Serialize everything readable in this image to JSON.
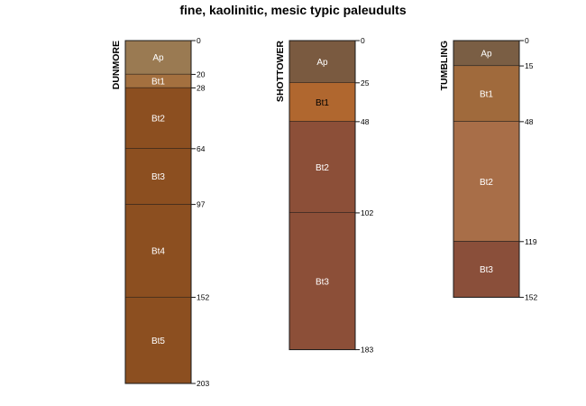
{
  "chart_data": {
    "type": "soil-profile",
    "title": "fine, kaolinitic, mesic typic paleudults",
    "depth_unit": "cm",
    "profiles": [
      {
        "name": "DUNMORE",
        "horizons": [
          {
            "name": "Ap",
            "top": 0,
            "bottom": 20,
            "color": "#9A7A52",
            "label_color": "#ffffff"
          },
          {
            "name": "Bt1",
            "top": 20,
            "bottom": 28,
            "color": "#A4703F",
            "label_color": "#ffffff"
          },
          {
            "name": "Bt2",
            "top": 28,
            "bottom": 64,
            "color": "#8C4F20",
            "label_color": "#ffffff"
          },
          {
            "name": "Bt3",
            "top": 64,
            "bottom": 97,
            "color": "#8C4F20",
            "label_color": "#ffffff"
          },
          {
            "name": "Bt4",
            "top": 97,
            "bottom": 152,
            "color": "#8C4F20",
            "label_color": "#ffffff"
          },
          {
            "name": "Bt5",
            "top": 152,
            "bottom": 203,
            "color": "#8C4F20",
            "label_color": "#ffffff"
          }
        ]
      },
      {
        "name": "SHOTTOWER",
        "horizons": [
          {
            "name": "Ap",
            "top": 0,
            "bottom": 25,
            "color": "#7A5A40",
            "label_color": "#ffffff"
          },
          {
            "name": "Bt1",
            "top": 25,
            "bottom": 48,
            "color": "#B0672F",
            "label_color": "#000000"
          },
          {
            "name": "Bt2",
            "top": 48,
            "bottom": 102,
            "color": "#8C4F38",
            "label_color": "#ffffff"
          },
          {
            "name": "Bt3",
            "top": 102,
            "bottom": 183,
            "color": "#8C4F38",
            "label_color": "#ffffff"
          }
        ]
      },
      {
        "name": "TUMBLING",
        "horizons": [
          {
            "name": "Ap",
            "top": 0,
            "bottom": 15,
            "color": "#7A5E44",
            "label_color": "#ffffff"
          },
          {
            "name": "Bt1",
            "top": 15,
            "bottom": 48,
            "color": "#A06A3C",
            "label_color": "#ffffff"
          },
          {
            "name": "Bt2",
            "top": 48,
            "bottom": 119,
            "color": "#A86E48",
            "label_color": "#ffffff"
          },
          {
            "name": "Bt3",
            "top": 119,
            "bottom": 152,
            "color": "#8A4F3A",
            "label_color": "#ffffff"
          }
        ]
      }
    ]
  }
}
